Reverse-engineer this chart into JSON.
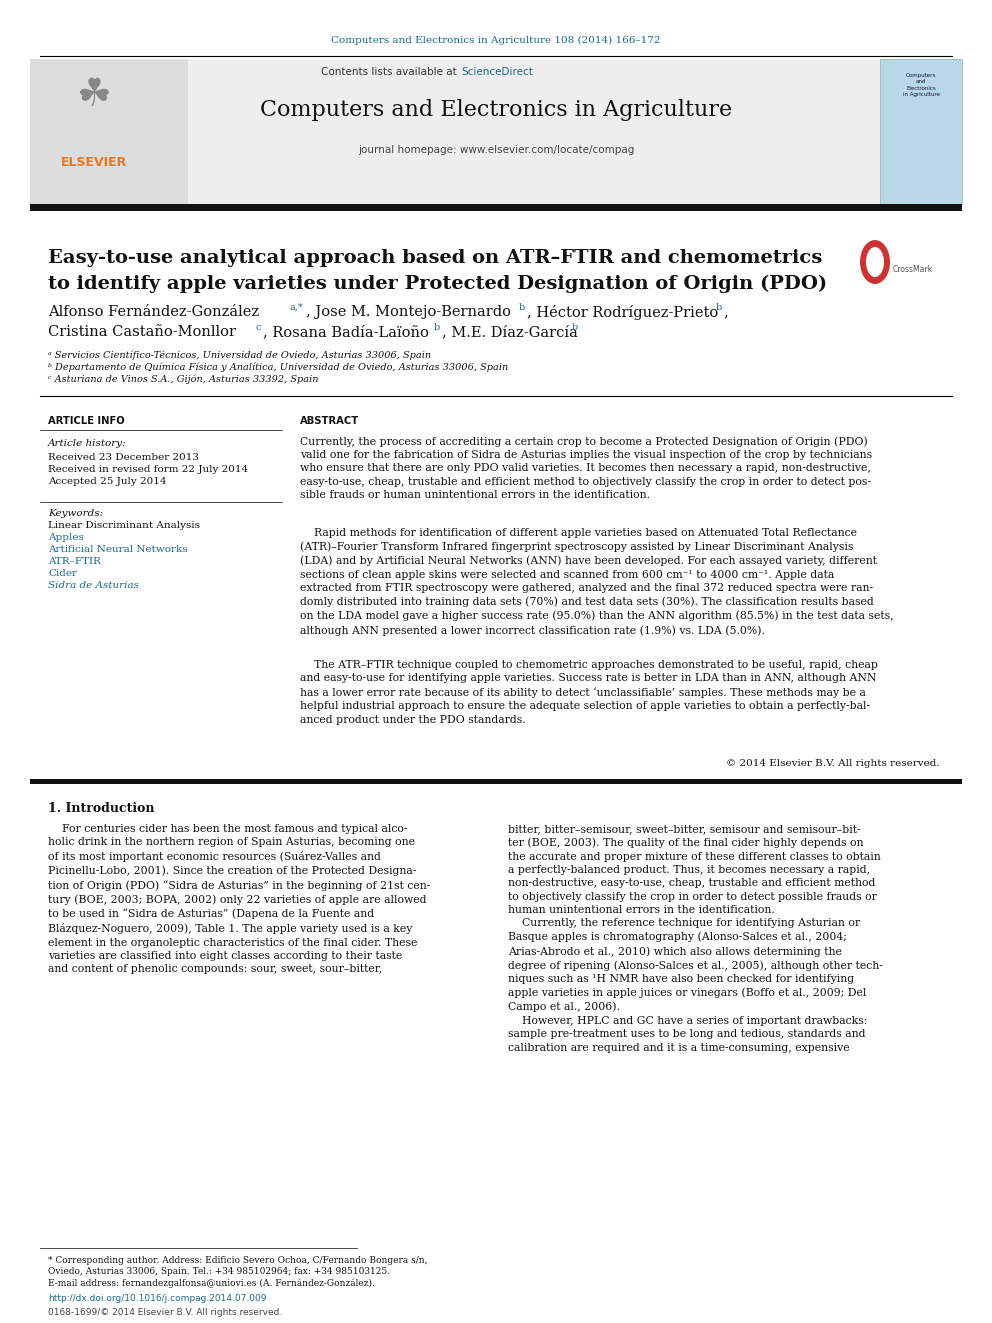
{
  "journal_ref": "Computers and Electronics in Agriculture 108 (2014) 166–172",
  "journal_name": "Computers and Electronics in Agriculture",
  "journal_homepage": "journal homepage: www.elsevier.com/locate/compag",
  "contents_text": "Contents lists available at ",
  "sciencedirect_text": "ScienceDirect",
  "paper_title_line1": "Easy-to-use analytical approach based on ATR–FTIR and chemometrics",
  "paper_title_line2": "to identify apple varieties under Protected Designation of Origin (PDO)",
  "affil_a": "ᵃ Servicios Científico-Técnicos, Universidad de Oviedo, Asturias 33006, Spain",
  "affil_b": "ᵇ Departamento de Química Física y Analítica, Universidad de Oviedo, Asturias 33006, Spain",
  "affil_c": "ᶜ Asturiana de Vinos S.A., Gijón, Asturias 33392, Spain",
  "article_info_header": "ARTICLE INFO",
  "abstract_header": "ABSTRACT",
  "article_history_label": "Article history:",
  "received1": "Received 23 December 2013",
  "received2": "Received in revised form 22 July 2014",
  "accepted": "Accepted 25 July 2014",
  "keywords_label": "Keywords:",
  "keyword1": "Linear Discriminant Analysis",
  "keyword2": "Apples",
  "keyword3": "Artificial Neural Networks",
  "keyword4": "ATR–FTIR",
  "keyword5": "Cider",
  "keyword6": "Sidra de Asturias",
  "abstract_p1": "Currently, the process of accrediting a certain crop to become a Protected Designation of Origin (PDO)\nvalid one for the fabrication of Sidra de Asturias implies the visual inspection of the crop by technicians\nwho ensure that there are only PDO valid varieties. It becomes then necessary a rapid, non-destructive,\neasy-to-use, cheap, trustable and efficient method to objectively classify the crop in order to detect pos-\nsible frauds or human unintentional errors in the identification.",
  "abstract_p2": "    Rapid methods for identification of different apple varieties based on Attenuated Total Reflectance\n(ATR)–Fourier Transform Infrared fingerprint spectroscopy assisted by Linear Discriminant Analysis\n(LDA) and by Artificial Neural Networks (ANN) have been developed. For each assayed variety, different\nsections of clean apple skins were selected and scanned from 600 cm⁻¹ to 4000 cm⁻¹. Apple data\nextracted from FTIR spectroscopy were gathered, analyzed and the final 372 reduced spectra were ran-\ndomly distributed into training data sets (70%) and test data sets (30%). The classification results based\non the LDA model gave a higher success rate (95.0%) than the ANN algorithm (85.5%) in the test data sets,\nalthough ANN presented a lower incorrect classification rate (1.9%) vs. LDA (5.0%).",
  "abstract_p3": "    The ATR–FTIR technique coupled to chemometric approaches demonstrated to be useful, rapid, cheap\nand easy-to-use for identifying apple varieties. Success rate is better in LDA than in ANN, although ANN\nhas a lower error rate because of its ability to detect ‘unclassifiable’ samples. These methods may be a\nhelpful industrial approach to ensure the adequate selection of apple varieties to obtain a perfectly-bal-\nanced product under the PDO standards.",
  "copyright": "© 2014 Elsevier B.V. All rights reserved.",
  "intro_header": "1. Introduction",
  "intro_col1": "    For centuries cider has been the most famous and typical alco-\nholic drink in the northern region of Spain Asturias, becoming one\nof its most important economic resources (Suárez-Valles and\nPicinellu-Lobo, 2001). Since the creation of the Protected Designa-\ntion of Origin (PDO) “Sidra de Asturias” in the beginning of 21st cen-\ntury (BOE, 2003; BOPA, 2002) only 22 varieties of apple are allowed\nto be used in “Sidra de Asturias” (Dapena de la Fuente and\nBlázquez-Noguero, 2009), Table 1. The apple variety used is a key\nelement in the organoleptic characteristics of the final cider. These\nvarieties are classified into eight classes according to their taste\nand content of phenolic compounds: sour, sweet, sour–bitter,",
  "intro_col2": "bitter, bitter–semisour, sweet–bitter, semisour and semisour–bit-\nter (BOE, 2003). The quality of the final cider highly depends on\nthe accurate and proper mixture of these different classes to obtain\na perfectly-balanced product. Thus, it becomes necessary a rapid,\nnon-destructive, easy-to-use, cheap, trustable and efficient method\nto objectively classify the crop in order to detect possible frauds or\nhuman unintentional errors in the identification.\n    Currently, the reference technique for identifying Asturian or\nBasque apples is chromatography (Alonso-Salces et al., 2004;\nArias-Abrodo et al., 2010) which also allows determining the\ndegree of ripening (Alonso-Salces et al., 2005), although other tech-\nniques such as ¹H NMR have also been checked for identifying\napple varieties in apple juices or vinegars (Boffo et al., 2009; Del\nCampo et al., 2006).\n    However, HPLC and GC have a series of important drawbacks:\nsample pre-treatment uses to be long and tedious, standards and\ncalibration are required and it is a time-consuming, expensive",
  "footnote_star": "* Corresponding author. Address: Edificio Severo Ochoa, C/Fernando Bongera s/n,\nOviedo, Asturias 33006, Spain. Tel.: +34 985102964; fax: +34 985103125.\nE-mail address: fernandezgalfonsa@uniovi.es (A. Fernández-González).",
  "doi_text": "http://dx.doi.org/10.1016/j.compag.2014.07.009",
  "issn_text": "0168-1699/© 2014 Elsevier B.V. All rights reserved.",
  "bg_color": "#ffffff",
  "blue_color": "#1a6a8a",
  "orange_color": "#e87722",
  "link_color": "#4a90a4"
}
